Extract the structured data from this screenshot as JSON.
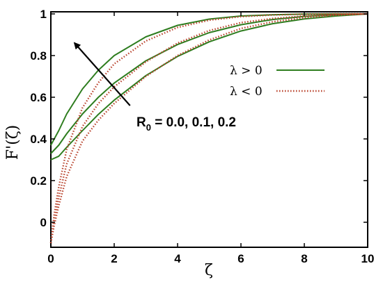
{
  "chart_data": {
    "type": "line",
    "xlabel": "ζ",
    "ylabel": "F'(ζ)",
    "xlim": [
      0,
      10
    ],
    "ylim": [
      -0.12,
      1.01
    ],
    "x_ticks": [
      "0",
      "2",
      "4",
      "6",
      "8",
      "10"
    ],
    "y_ticks": [
      "0",
      "0.2",
      "0.4",
      "0.6",
      "0.8",
      "1"
    ],
    "grid": false,
    "legend": {
      "placement": "right",
      "entries": [
        {
          "label": "λ > 0",
          "color": "#2e7d1f",
          "style": "solid"
        },
        {
          "label": "λ < 0",
          "color": "#b8412a",
          "style": "dotted"
        }
      ]
    },
    "annotation": {
      "text": "R",
      "subscript": "0",
      "rest": " = 0.0, 0.1, 0.2",
      "arrow_from": [
        2.5,
        0.56
      ],
      "arrow_to": [
        0.75,
        0.86
      ]
    },
    "series": [
      {
        "group": "λ > 0",
        "R0": 0.0,
        "color": "#2e7d1f",
        "style": "solid",
        "x": [
          0,
          0.25,
          0.5,
          1,
          1.5,
          2,
          3,
          4,
          5,
          6,
          7,
          8,
          9,
          10
        ],
        "y": [
          0.3,
          0.317,
          0.36,
          0.44,
          0.518,
          0.586,
          0.704,
          0.796,
          0.866,
          0.918,
          0.953,
          0.976,
          0.99,
          1.0
        ]
      },
      {
        "group": "λ > 0",
        "R0": 0.1,
        "color": "#2e7d1f",
        "style": "solid",
        "x": [
          0,
          0.25,
          0.5,
          1,
          1.5,
          2,
          3,
          4,
          5,
          6,
          7,
          8,
          9,
          10
        ],
        "y": [
          0.33,
          0.37,
          0.425,
          0.52,
          0.6,
          0.668,
          0.775,
          0.853,
          0.91,
          0.948,
          0.973,
          0.988,
          0.996,
          1.0
        ]
      },
      {
        "group": "λ > 0",
        "R0": 0.2,
        "color": "#2e7d1f",
        "style": "solid",
        "x": [
          0,
          0.25,
          0.5,
          1,
          1.5,
          2,
          3,
          4,
          5,
          6,
          7,
          8,
          9,
          10
        ],
        "y": [
          0.37,
          0.44,
          0.52,
          0.64,
          0.73,
          0.8,
          0.89,
          0.945,
          0.975,
          0.99,
          0.996,
          0.999,
          1.0,
          1.0
        ]
      },
      {
        "group": "λ < 0",
        "R0": 0.0,
        "color": "#b8412a",
        "style": "dotted",
        "x": [
          0,
          0.1,
          0.25,
          0.5,
          1,
          1.5,
          2,
          3,
          4,
          5,
          6,
          7,
          8,
          9,
          10
        ],
        "y": [
          -0.1,
          -0.02,
          0.08,
          0.22,
          0.39,
          0.49,
          0.57,
          0.7,
          0.8,
          0.875,
          0.93,
          0.962,
          0.982,
          0.994,
          1.0
        ]
      },
      {
        "group": "λ < 0",
        "R0": 0.1,
        "color": "#b8412a",
        "style": "dotted",
        "x": [
          0,
          0.1,
          0.25,
          0.5,
          1,
          1.5,
          2,
          3,
          4,
          5,
          6,
          7,
          8,
          9,
          10
        ],
        "y": [
          -0.1,
          0.0,
          0.12,
          0.28,
          0.46,
          0.57,
          0.65,
          0.77,
          0.86,
          0.92,
          0.958,
          0.978,
          0.99,
          0.997,
          1.0
        ]
      },
      {
        "group": "λ < 0",
        "R0": 0.2,
        "color": "#b8412a",
        "style": "dotted",
        "x": [
          0,
          0.1,
          0.25,
          0.5,
          1,
          1.5,
          2,
          3,
          4,
          5,
          6,
          7,
          8,
          9,
          10
        ],
        "y": [
          -0.1,
          0.03,
          0.17,
          0.35,
          0.55,
          0.67,
          0.76,
          0.87,
          0.935,
          0.97,
          0.987,
          0.995,
          0.999,
          1.0,
          1.0
        ]
      }
    ]
  }
}
